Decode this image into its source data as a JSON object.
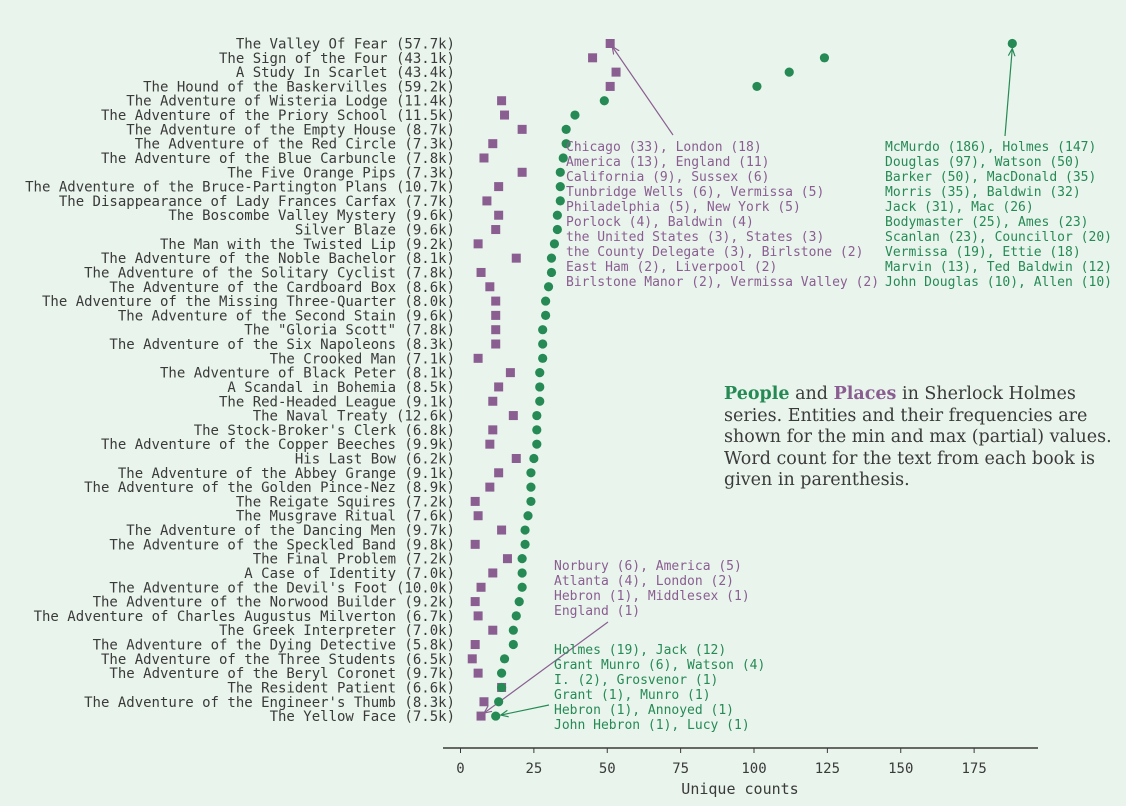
{
  "colors": {
    "people": "#268a55",
    "places": "#8a5e91",
    "text": "#3a3a3a",
    "background": "#e9f4ec"
  },
  "title": {
    "people_word": "People",
    "and_word": "and",
    "places_word": "Places",
    "rest": "in Sherlock Holmes series. Entities and their frequencies are shown for the min and max (partial) values. Word count for the text from each book is given in parenthesis."
  },
  "annotations": {
    "top_places": [
      "Chicago (33), London (18)",
      "America (13), England (11)",
      "California (9), Sussex (6)",
      "Tunbridge Wells (6), Vermissa (5)",
      "Philadelphia (5), New York (5)",
      "Porlock (4), Baldwin (4)",
      "the United States (3), States (3)",
      "the County Delegate (3), Birlstone (2)",
      "East Ham (2), Liverpool (2)",
      "Birlstone Manor (2), Vermissa Valley (2)"
    ],
    "top_people": [
      "McMurdo (186), Holmes (147)",
      "Douglas (97), Watson (50)",
      "Barker (50), MacDonald (35)",
      "Morris (35), Baldwin (32)",
      "Jack (31), Mac (26)",
      "Bodymaster (25), Ames (23)",
      "Scanlan (23), Councillor (20)",
      "Vermissa (19), Ettie (18)",
      "Marvin (13), Ted Baldwin (12)",
      "John Douglas (10), Allen (10)"
    ],
    "bottom_places": [
      "Norbury (6), America (5)",
      "Atlanta (4), London (2)",
      "Hebron (1), Middlesex (1)",
      "England (1)"
    ],
    "bottom_people": [
      "Holmes (19), Jack (12)",
      "Grant Munro (6), Watson (4)",
      "I. (2), Grosvenor (1)",
      "Grant (1), Munro (1)",
      "Hebron (1), Annoyed (1)",
      "John Hebron (1), Lucy (1)"
    ]
  },
  "chart_data": {
    "type": "scatter",
    "xlabel": "Unique counts",
    "xlim": [
      -6,
      197
    ],
    "xticks": [
      0,
      25,
      50,
      75,
      100,
      125,
      150,
      175
    ],
    "legend": "in title text",
    "grid": false,
    "categories": [
      "The Valley Of Fear (57.7k)",
      "The Sign of the Four (43.1k)",
      "A Study In Scarlet (43.4k)",
      "The Hound of the Baskervilles (59.2k)",
      "The Adventure of Wisteria Lodge (11.4k)",
      "The Adventure of the Priory School (11.5k)",
      "The Adventure of the Empty House (8.7k)",
      "The Adventure of the Red Circle (7.3k)",
      "The Adventure of the Blue Carbuncle (7.8k)",
      "The Five Orange Pips (7.3k)",
      "The Adventure of the Bruce-Partington Plans (10.7k)",
      "The Disappearance of Lady Frances Carfax (7.7k)",
      "The Boscombe Valley Mystery (9.6k)",
      "Silver Blaze (9.6k)",
      "The Man with the Twisted Lip (9.2k)",
      "The Adventure of the Noble Bachelor (8.1k)",
      "The Adventure of the Solitary Cyclist (7.8k)",
      "The Adventure of the Cardboard Box (8.6k)",
      "The Adventure of the Missing Three-Quarter (8.0k)",
      "The Adventure of the Second Stain (9.6k)",
      "The \"Gloria Scott\" (7.8k)",
      "The Adventure of the Six Napoleons (8.3k)",
      "The Crooked Man (7.1k)",
      "The Adventure of Black Peter (8.1k)",
      "A Scandal in Bohemia (8.5k)",
      "The Red-Headed League (9.1k)",
      "The Naval Treaty (12.6k)",
      "The Stock-Broker's Clerk (6.8k)",
      "The Adventure of the Copper Beeches (9.9k)",
      "His Last Bow (6.2k)",
      "The Adventure of the Abbey Grange (9.1k)",
      "The Adventure of the Golden Pince-Nez (8.9k)",
      "The Reigate Squires (7.2k)",
      "The Musgrave Ritual (7.6k)",
      "The Adventure of the Dancing Men (9.7k)",
      "The Adventure of the Speckled Band (9.8k)",
      "The Final Problem (7.2k)",
      "A Case of Identity (7.0k)",
      "The Adventure of the Devil's Foot (10.0k)",
      "The Adventure of the Norwood Builder (9.2k)",
      "The Adventure of Charles Augustus Milverton (6.7k)",
      "The Greek Interpreter (7.0k)",
      "The Adventure of the Dying Detective (5.8k)",
      "The Adventure of the Three Students (6.5k)",
      "The Adventure of the Beryl Coronet (9.7k)",
      "The Resident Patient (6.6k)",
      "The Adventure of the Engineer's Thumb (8.3k)",
      "The Yellow Face (7.5k)"
    ],
    "series": [
      {
        "name": "People",
        "marker": "circle",
        "values": [
          188,
          124,
          112,
          101,
          49,
          39,
          36,
          36,
          35,
          34,
          34,
          34,
          33,
          33,
          32,
          31,
          31,
          30,
          29,
          29,
          28,
          28,
          28,
          27,
          27,
          27,
          26,
          26,
          26,
          25,
          24,
          24,
          24,
          23,
          22,
          22,
          21,
          21,
          21,
          20,
          19,
          18,
          18,
          15,
          14,
          14,
          13,
          12
        ]
      },
      {
        "name": "Places",
        "marker": "square",
        "values": [
          51,
          45,
          53,
          51,
          14,
          15,
          21,
          11,
          8,
          21,
          13,
          9,
          13,
          12,
          6,
          19,
          7,
          10,
          12,
          12,
          12,
          12,
          6,
          17,
          13,
          11,
          18,
          11,
          10,
          19,
          13,
          10,
          5,
          6,
          14,
          5,
          16,
          11,
          7,
          5,
          6,
          11,
          5,
          4,
          6,
          14,
          8,
          7
        ]
      }
    ]
  }
}
